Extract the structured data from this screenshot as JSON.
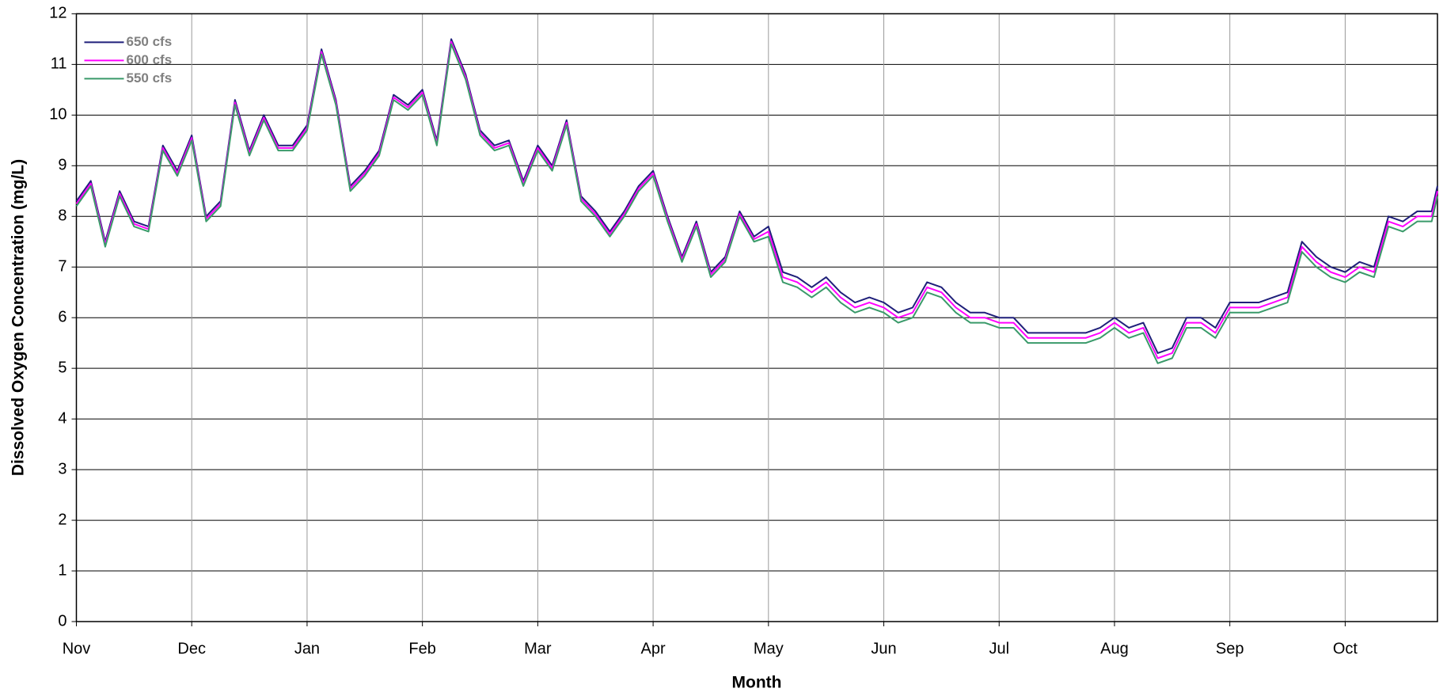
{
  "chart_data": {
    "type": "line",
    "x_label": "Month",
    "y_label": "Dissolved Oxygen Concentration (mg/L)",
    "x": [
      0,
      0.125,
      0.25,
      0.375,
      0.5,
      0.625,
      0.75,
      0.875,
      1,
      1.125,
      1.25,
      1.375,
      1.5,
      1.625,
      1.75,
      1.875,
      2,
      2.125,
      2.25,
      2.375,
      2.5,
      2.625,
      2.75,
      2.875,
      3,
      3.125,
      3.25,
      3.375,
      3.5,
      3.625,
      3.75,
      3.875,
      4,
      4.125,
      4.25,
      4.375,
      4.5,
      4.625,
      4.75,
      4.875,
      5,
      5.125,
      5.25,
      5.375,
      5.5,
      5.625,
      5.75,
      5.875,
      6,
      6.125,
      6.25,
      6.375,
      6.5,
      6.625,
      6.75,
      6.875,
      7,
      7.125,
      7.25,
      7.375,
      7.5,
      7.625,
      7.75,
      7.875,
      8,
      8.125,
      8.25,
      8.375,
      8.5,
      8.625,
      8.75,
      8.875,
      9,
      9.125,
      9.25,
      9.375,
      9.5,
      9.625,
      9.75,
      9.875,
      10,
      10.125,
      10.25,
      10.375,
      10.5,
      10.625,
      10.75,
      10.875,
      11,
      11.125,
      11.25,
      11.375,
      11.5,
      11.625,
      11.75,
      11.8
    ],
    "series": [
      {
        "name": "650 cfs",
        "color": "#1f1f7a",
        "values": [
          8.3,
          8.7,
          7.5,
          8.5,
          7.9,
          7.8,
          9.4,
          8.9,
          9.6,
          8.0,
          8.3,
          10.3,
          9.3,
          10.0,
          9.4,
          9.4,
          9.8,
          11.3,
          10.3,
          8.6,
          8.9,
          9.3,
          10.4,
          10.2,
          10.5,
          9.5,
          11.5,
          10.8,
          9.7,
          9.4,
          9.5,
          8.7,
          9.4,
          9.0,
          9.9,
          8.4,
          8.1,
          7.7,
          8.1,
          8.6,
          8.9,
          8.0,
          7.2,
          7.9,
          6.9,
          7.2,
          8.1,
          7.6,
          7.8,
          6.9,
          6.8,
          6.6,
          6.8,
          6.5,
          6.3,
          6.4,
          6.3,
          6.1,
          6.2,
          6.7,
          6.6,
          6.3,
          6.1,
          6.1,
          6.0,
          6.0,
          5.7,
          5.7,
          5.7,
          5.7,
          5.7,
          5.8,
          6.0,
          5.8,
          5.9,
          5.3,
          5.4,
          6.0,
          6.0,
          5.8,
          6.3,
          6.3,
          6.3,
          6.4,
          6.5,
          7.5,
          7.2,
          7.0,
          6.9,
          7.1,
          7.0,
          8.0,
          7.9,
          8.1,
          8.1,
          8.6
        ]
      },
      {
        "name": "600 cfs",
        "color": "#ff00ff",
        "values": [
          8.25,
          8.65,
          7.45,
          8.45,
          7.85,
          7.75,
          9.35,
          8.85,
          9.55,
          7.95,
          8.25,
          10.25,
          9.25,
          9.95,
          9.35,
          9.35,
          9.75,
          11.25,
          10.25,
          8.55,
          8.85,
          9.25,
          10.35,
          10.15,
          10.45,
          9.45,
          11.45,
          10.75,
          9.65,
          9.35,
          9.45,
          8.65,
          9.35,
          8.95,
          9.85,
          8.35,
          8.05,
          7.65,
          8.05,
          8.55,
          8.85,
          7.95,
          7.15,
          7.85,
          6.85,
          7.15,
          8.05,
          7.55,
          7.7,
          6.8,
          6.7,
          6.5,
          6.7,
          6.4,
          6.2,
          6.3,
          6.2,
          6.0,
          6.1,
          6.6,
          6.5,
          6.2,
          6.0,
          6.0,
          5.9,
          5.9,
          5.6,
          5.6,
          5.6,
          5.6,
          5.6,
          5.7,
          5.9,
          5.7,
          5.8,
          5.2,
          5.3,
          5.9,
          5.9,
          5.7,
          6.2,
          6.2,
          6.2,
          6.3,
          6.4,
          7.4,
          7.1,
          6.9,
          6.8,
          7.0,
          6.9,
          7.9,
          7.8,
          8.0,
          8.0,
          8.5
        ]
      },
      {
        "name": "550 cfs",
        "color": "#3a9a6a",
        "values": [
          8.2,
          8.6,
          7.4,
          8.4,
          7.8,
          7.7,
          9.3,
          8.8,
          9.5,
          7.9,
          8.2,
          10.2,
          9.2,
          9.9,
          9.3,
          9.3,
          9.7,
          11.2,
          10.2,
          8.5,
          8.8,
          9.2,
          10.3,
          10.1,
          10.4,
          9.4,
          11.4,
          10.7,
          9.6,
          9.3,
          9.4,
          8.6,
          9.3,
          8.9,
          9.8,
          8.3,
          8.0,
          7.6,
          8.0,
          8.5,
          8.8,
          7.9,
          7.1,
          7.8,
          6.8,
          7.1,
          8.0,
          7.5,
          7.6,
          6.7,
          6.6,
          6.4,
          6.6,
          6.3,
          6.1,
          6.2,
          6.1,
          5.9,
          6.0,
          6.5,
          6.4,
          6.1,
          5.9,
          5.9,
          5.8,
          5.8,
          5.5,
          5.5,
          5.5,
          5.5,
          5.5,
          5.6,
          5.8,
          5.6,
          5.7,
          5.1,
          5.2,
          5.8,
          5.8,
          5.6,
          6.1,
          6.1,
          6.1,
          6.2,
          6.3,
          7.3,
          7.0,
          6.8,
          6.7,
          6.9,
          6.8,
          7.8,
          7.7,
          7.9,
          7.9,
          8.4
        ]
      }
    ],
    "xlim": [
      0,
      11.8
    ],
    "xticks": [
      {
        "value": 0,
        "label": "Nov"
      },
      {
        "value": 1,
        "label": "Dec"
      },
      {
        "value": 2,
        "label": "Jan"
      },
      {
        "value": 3,
        "label": "Feb"
      },
      {
        "value": 4,
        "label": "Mar"
      },
      {
        "value": 5,
        "label": "Apr"
      },
      {
        "value": 6,
        "label": "May"
      },
      {
        "value": 7,
        "label": "Jun"
      },
      {
        "value": 8,
        "label": "Jul"
      },
      {
        "value": 9,
        "label": "Aug"
      },
      {
        "value": 10,
        "label": "Sep"
      },
      {
        "value": 11,
        "label": "Oct"
      }
    ],
    "ylim": [
      0,
      12
    ],
    "yticks": [
      0,
      1,
      2,
      3,
      4,
      5,
      6,
      7,
      8,
      9,
      10,
      11,
      12
    ],
    "grid": true,
    "legend": "upper left"
  }
}
